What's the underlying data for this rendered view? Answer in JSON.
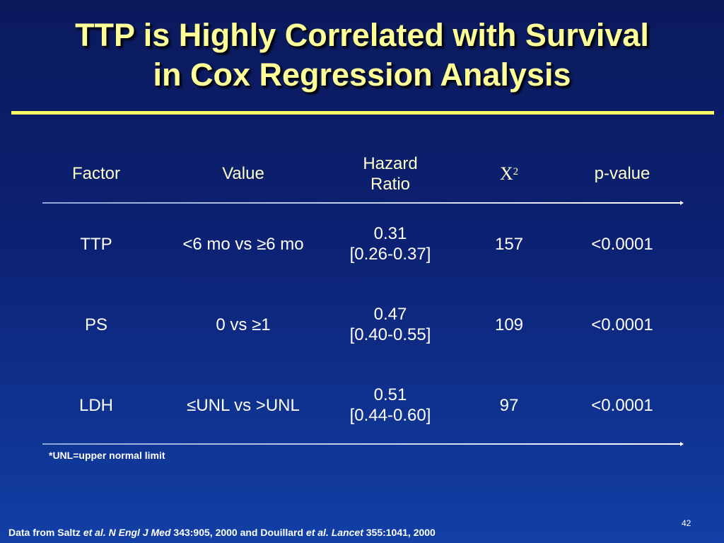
{
  "slide": {
    "title_line1": "TTP is Highly Correlated with Survival",
    "title_line2": "in Cox Regression Analysis",
    "title_color": "#ffff99",
    "rule_color": "#ffff66",
    "background_top": "#0b1a5c",
    "background_bottom": "#1240a6",
    "page_number": "42"
  },
  "table": {
    "headers": {
      "factor": "Factor",
      "value": "Value",
      "hazard_line1": "Hazard",
      "hazard_line2": "Ratio",
      "chi_symbol": "X",
      "chi_superscript": "2",
      "pvalue": "p-value"
    },
    "rows": [
      {
        "factor": "TTP",
        "value": "<6 mo vs ≥6 mo",
        "hr": "0.31",
        "ci": "[0.26-0.37]",
        "chi2": "157",
        "p": "<0.0001"
      },
      {
        "factor": "PS",
        "value": "0 vs ≥1",
        "hr": "0.47",
        "ci": "[0.40-0.55]",
        "chi2": "109",
        "p": "<0.0001"
      },
      {
        "factor": "LDH",
        "value": "≤UNL vs >UNL",
        "hr": "0.51",
        "ci": "[0.44-0.60]",
        "chi2": "97",
        "p": "<0.0001"
      }
    ]
  },
  "footnote": "*UNL=upper normal limit",
  "citation": {
    "part1": "Data from Saltz ",
    "part2": "et al. N Engl J Med",
    "part3": " 343:905, 2000 and Douillard ",
    "part4": "et al. Lancet",
    "part5": " 355:1041, 2000"
  }
}
